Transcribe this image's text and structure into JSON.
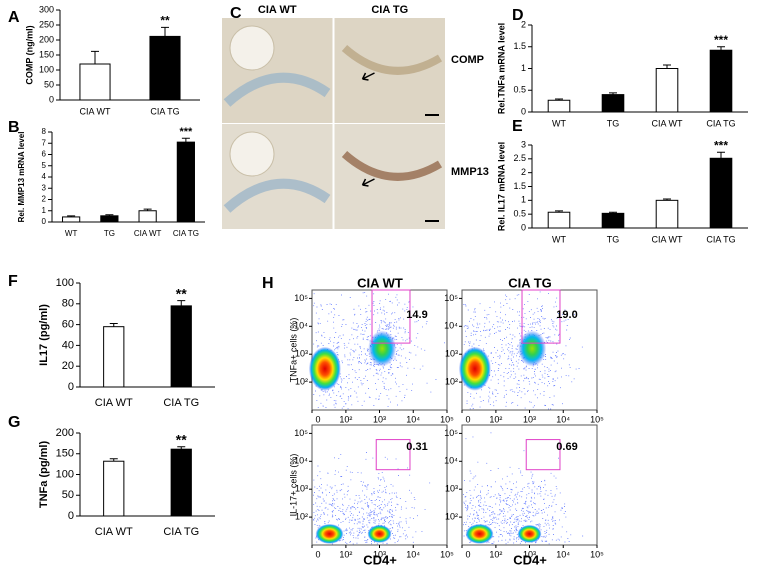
{
  "chart_data": [
    {
      "type": "bar",
      "label": "A",
      "ylabel": "COMP (ng/ml)",
      "categories": [
        "CIA WT",
        "CIA TG"
      ],
      "values": [
        120,
        212
      ],
      "errors": [
        42,
        30
      ],
      "colors": [
        "#ffffff",
        "#000000"
      ],
      "ylim": [
        0,
        300
      ],
      "yticks": [
        0,
        50,
        100,
        150,
        200,
        250,
        300
      ],
      "annotation": "**"
    },
    {
      "type": "bar",
      "label": "B",
      "ylabel": "Rel. MMP13 mRNA level",
      "categories": [
        "WT",
        "TG",
        "CIA WT",
        "CIA TG"
      ],
      "values": [
        0.45,
        0.55,
        1.0,
        7.1
      ],
      "errors": [
        0.1,
        0.1,
        0.15,
        0.35
      ],
      "colors": [
        "#ffffff",
        "#000000",
        "#ffffff",
        "#000000"
      ],
      "ylim": [
        0,
        8
      ],
      "yticks": [
        0,
        1,
        2,
        3,
        4,
        5,
        6,
        7,
        8
      ],
      "annotation": "***"
    },
    {
      "type": "image",
      "label": "C",
      "columns": [
        "CIA WT",
        "CIA TG"
      ],
      "rows": [
        "COMP",
        "MMP13"
      ]
    },
    {
      "type": "bar",
      "label": "D",
      "ylabel": "Rel.TNFa mRNA level",
      "categories": [
        "WT",
        "TG",
        "CIA WT",
        "CIA TG"
      ],
      "values": [
        0.27,
        0.4,
        1.0,
        1.42
      ],
      "errors": [
        0.03,
        0.04,
        0.08,
        0.08
      ],
      "colors": [
        "#ffffff",
        "#000000",
        "#ffffff",
        "#000000"
      ],
      "ylim": [
        0,
        2
      ],
      "yticks": [
        0,
        0.5,
        1,
        1.5,
        2
      ],
      "annotation": "***"
    },
    {
      "type": "bar",
      "label": "E",
      "ylabel": "Rel. IL17 mRNA level",
      "categories": [
        "WT",
        "TG",
        "CIA WT",
        "CIA TG"
      ],
      "values": [
        0.57,
        0.53,
        1.0,
        2.52
      ],
      "errors": [
        0.05,
        0.04,
        0.05,
        0.22
      ],
      "colors": [
        "#ffffff",
        "#000000",
        "#ffffff",
        "#000000"
      ],
      "ylim": [
        0,
        3
      ],
      "yticks": [
        0,
        0.5,
        1,
        1.5,
        2,
        2.5,
        3
      ],
      "annotation": "***"
    },
    {
      "type": "bar",
      "label": "F",
      "ylabel": "IL17 (pg/ml)",
      "categories": [
        "CIA WT",
        "CIA TG"
      ],
      "values": [
        58,
        78
      ],
      "errors": [
        3,
        5
      ],
      "colors": [
        "#ffffff",
        "#000000"
      ],
      "ylim": [
        0,
        100
      ],
      "yticks": [
        0,
        20,
        40,
        60,
        80,
        100
      ],
      "annotation": "**"
    },
    {
      "type": "bar",
      "label": "G",
      "ylabel": "TNFa (pg/ml)",
      "categories": [
        "CIA WT",
        "CIA TG"
      ],
      "values": [
        132,
        161
      ],
      "errors": [
        6,
        6
      ],
      "colors": [
        "#ffffff",
        "#000000"
      ],
      "ylim": [
        0,
        200
      ],
      "yticks": [
        0,
        50,
        100,
        150,
        200
      ],
      "annotation": "**"
    },
    {
      "type": "flow",
      "label": "H",
      "columns": [
        "CIA WT",
        "CIA TG"
      ],
      "rows": [
        "TNFa+ cells (%)",
        "IL-17+ cells (%)"
      ],
      "xlabel": "CD4+",
      "xlim": [
        0,
        100000
      ],
      "xticks": [
        0,
        {
          "value": 100,
          "label": "10²"
        },
        {
          "value": 1000,
          "label": "10³"
        },
        {
          "value": 10000,
          "label": "10⁴"
        },
        {
          "value": 100000,
          "label": "10⁵"
        }
      ],
      "ylim": [
        10,
        200000
      ],
      "yticks": [
        {
          "value": 100,
          "label": "10²"
        },
        {
          "value": 1000,
          "label": "10³"
        },
        {
          "value": 10000,
          "label": "10⁴"
        },
        {
          "value": 100000,
          "label": "10⁵"
        }
      ],
      "values": [
        14.9,
        19.0,
        0.31,
        0.69
      ],
      "value_labels": [
        "14.9",
        "19.0",
        "0.31",
        "0.69"
      ],
      "gate_color": "#e040c8"
    }
  ]
}
